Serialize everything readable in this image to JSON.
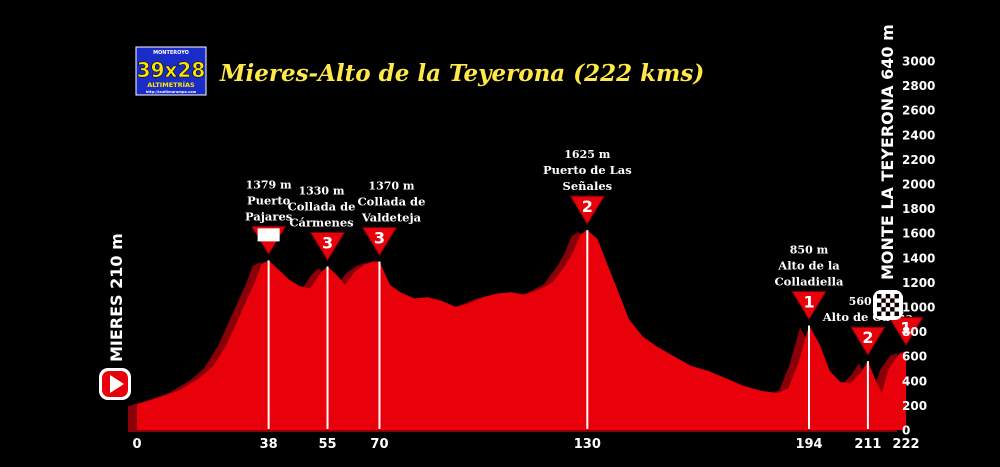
{
  "logo": {
    "top_text": "MONTEROYO",
    "main_text": "39x28",
    "sub_text": "ALTIMETRÍAS",
    "url_text": "http://laultimarampa.com",
    "colors": {
      "background": "#1a2cc8",
      "main_text": "#ffe600"
    }
  },
  "colors": {
    "profile": "#e8000a",
    "profile_shadow": "#8a0008",
    "background": "#000000",
    "title": "#ffe94a",
    "text": "#ffffff"
  },
  "chart_data": {
    "type": "area",
    "title": "Mieres-Alto de la Teyerona (222 kms)",
    "xlabel": "",
    "ylabel": "",
    "xlim": [
      0,
      222
    ],
    "ylim": [
      0,
      3000
    ],
    "grid": false,
    "y_ticks": [
      0,
      200,
      400,
      600,
      800,
      1000,
      1200,
      1400,
      1600,
      1800,
      2000,
      2200,
      2400,
      2600,
      2800,
      3000
    ],
    "x_ticks": [
      0,
      38,
      55,
      70,
      130,
      194,
      211,
      222
    ],
    "start_label": "MIERES 210 m",
    "finish_label": "MONTE LA TEYERONA 640 m",
    "series": [
      {
        "x": [
          0,
          6,
          12,
          18,
          22,
          26,
          30,
          34,
          36,
          38,
          41,
          44,
          47,
          50,
          53,
          55,
          58,
          60,
          63,
          66,
          68,
          70,
          73,
          76,
          80,
          84,
          88,
          92,
          96,
          100,
          104,
          108,
          112,
          116,
          120,
          124,
          126,
          128,
          130,
          133,
          136,
          139,
          142,
          146,
          150,
          155,
          160,
          165,
          170,
          175,
          180,
          185,
          188,
          191,
          194,
          197,
          200,
          203,
          206,
          209,
          211,
          213,
          215,
          217,
          220,
          222
        ],
        "values": [
          210,
          260,
          320,
          420,
          520,
          700,
          950,
          1200,
          1350,
          1379,
          1300,
          1220,
          1170,
          1150,
          1280,
          1330,
          1250,
          1180,
          1290,
          1350,
          1370,
          1370,
          1180,
          1120,
          1070,
          1080,
          1050,
          1000,
          1030,
          1080,
          1110,
          1120,
          1100,
          1140,
          1200,
          1350,
          1450,
          1590,
          1625,
          1550,
          1330,
          1120,
          900,
          760,
          680,
          600,
          520,
          480,
          420,
          360,
          320,
          300,
          340,
          550,
          850,
          700,
          480,
          390,
          380,
          470,
          560,
          420,
          300,
          500,
          620,
          640
        ]
      }
    ],
    "climbs": [
      {
        "km": 38,
        "elevation": 1379,
        "elev_label": "1379 m",
        "name": "Puerto Pajares",
        "category": "HC"
      },
      {
        "km": 55,
        "elevation": 1330,
        "elev_label": "1330 m",
        "name": "Collada de Cármenes",
        "category": "3"
      },
      {
        "km": 70,
        "elevation": 1370,
        "elev_label": "1370 m",
        "name": "Collada de Valdeteja",
        "category": "3"
      },
      {
        "km": 130,
        "elevation": 1625,
        "elev_label": "1625 m",
        "name": "Puerto de Las Señales",
        "category": "2"
      },
      {
        "km": 194,
        "elevation": 850,
        "elev_label": "850 m",
        "name": "Alto de la Colladiella",
        "category": "1"
      },
      {
        "km": 211,
        "elevation": 560,
        "elev_label": "560 m",
        "name": "Alto de Cueña",
        "category": "2"
      },
      {
        "km": 222,
        "elevation": 640,
        "elev_label": "",
        "name": "",
        "category": "1"
      }
    ]
  }
}
